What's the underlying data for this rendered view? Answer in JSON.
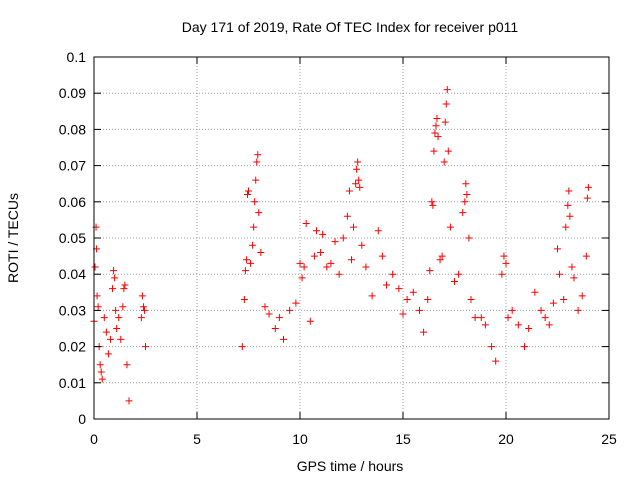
{
  "chart_data": {
    "type": "scatter",
    "title": "Day 171 of 2019, Rate Of TEC Index for receiver p011",
    "xlabel": "GPS time / hours",
    "ylabel": "ROTI / TECUs",
    "xlim": [
      0,
      25
    ],
    "ylim": [
      0,
      0.1
    ],
    "x_ticks": [
      "0",
      "5",
      "10",
      "15",
      "20",
      "25"
    ],
    "y_ticks": [
      "0",
      "0.01",
      "0.02",
      "0.03",
      "0.04",
      "0.05",
      "0.06",
      "0.07",
      "0.08",
      "0.09",
      "0.1"
    ],
    "grid": true,
    "marker": "+",
    "color": "#ff0000",
    "data_gaps_hours": [
      [
        2.7,
        7.1
      ]
    ],
    "series": [
      {
        "points": [
          [
            0.0,
            0.027
          ],
          [
            0.05,
            0.042
          ],
          [
            0.1,
            0.053
          ],
          [
            0.12,
            0.047
          ],
          [
            0.15,
            0.034
          ],
          [
            0.2,
            0.031
          ],
          [
            0.25,
            0.02
          ],
          [
            0.3,
            0.015
          ],
          [
            0.35,
            0.013
          ],
          [
            0.4,
            0.011
          ],
          [
            0.5,
            0.028
          ],
          [
            0.6,
            0.024
          ],
          [
            0.7,
            0.018
          ],
          [
            0.8,
            0.022
          ],
          [
            0.9,
            0.036
          ],
          [
            0.95,
            0.041
          ],
          [
            1.0,
            0.039
          ],
          [
            1.05,
            0.03
          ],
          [
            1.1,
            0.025
          ],
          [
            1.2,
            0.028
          ],
          [
            1.3,
            0.022
          ],
          [
            1.4,
            0.031
          ],
          [
            1.45,
            0.036
          ],
          [
            1.5,
            0.037
          ],
          [
            1.6,
            0.015
          ],
          [
            1.7,
            0.005
          ],
          [
            2.3,
            0.028
          ],
          [
            2.35,
            0.034
          ],
          [
            2.4,
            0.031
          ],
          [
            2.45,
            0.03
          ],
          [
            2.5,
            0.02
          ],
          [
            7.2,
            0.02
          ],
          [
            7.3,
            0.033
          ],
          [
            7.35,
            0.041
          ],
          [
            7.4,
            0.044
          ],
          [
            7.45,
            0.062
          ],
          [
            7.5,
            0.063
          ],
          [
            7.6,
            0.043
          ],
          [
            7.7,
            0.048
          ],
          [
            7.75,
            0.053
          ],
          [
            7.8,
            0.06
          ],
          [
            7.85,
            0.066
          ],
          [
            7.9,
            0.071
          ],
          [
            7.95,
            0.073
          ],
          [
            8.0,
            0.057
          ],
          [
            8.1,
            0.046
          ],
          [
            8.3,
            0.031
          ],
          [
            8.5,
            0.029
          ],
          [
            8.8,
            0.025
          ],
          [
            9.0,
            0.028
          ],
          [
            9.2,
            0.022
          ],
          [
            9.5,
            0.03
          ],
          [
            9.8,
            0.032
          ],
          [
            10.0,
            0.043
          ],
          [
            10.1,
            0.039
          ],
          [
            10.2,
            0.042
          ],
          [
            10.3,
            0.054
          ],
          [
            10.5,
            0.027
          ],
          [
            10.7,
            0.045
          ],
          [
            10.8,
            0.052
          ],
          [
            11.0,
            0.046
          ],
          [
            11.1,
            0.051
          ],
          [
            11.3,
            0.042
          ],
          [
            11.5,
            0.043
          ],
          [
            11.7,
            0.049
          ],
          [
            11.9,
            0.04
          ],
          [
            12.1,
            0.05
          ],
          [
            12.3,
            0.056
          ],
          [
            12.4,
            0.063
          ],
          [
            12.5,
            0.044
          ],
          [
            12.6,
            0.053
          ],
          [
            12.7,
            0.065
          ],
          [
            12.75,
            0.069
          ],
          [
            12.8,
            0.071
          ],
          [
            12.85,
            0.066
          ],
          [
            12.9,
            0.064
          ],
          [
            13.0,
            0.048
          ],
          [
            13.2,
            0.042
          ],
          [
            13.5,
            0.034
          ],
          [
            13.8,
            0.052
          ],
          [
            14.0,
            0.045
          ],
          [
            14.2,
            0.037
          ],
          [
            14.5,
            0.04
          ],
          [
            14.8,
            0.036
          ],
          [
            15.0,
            0.029
          ],
          [
            15.2,
            0.033
          ],
          [
            15.5,
            0.035
          ],
          [
            15.8,
            0.03
          ],
          [
            16.0,
            0.024
          ],
          [
            16.2,
            0.033
          ],
          [
            16.3,
            0.041
          ],
          [
            16.4,
            0.06
          ],
          [
            16.45,
            0.059
          ],
          [
            16.5,
            0.074
          ],
          [
            16.55,
            0.079
          ],
          [
            16.6,
            0.081
          ],
          [
            16.65,
            0.083
          ],
          [
            16.7,
            0.078
          ],
          [
            16.8,
            0.044
          ],
          [
            16.9,
            0.045
          ],
          [
            17.0,
            0.071
          ],
          [
            17.05,
            0.082
          ],
          [
            17.1,
            0.087
          ],
          [
            17.15,
            0.091
          ],
          [
            17.2,
            0.074
          ],
          [
            17.3,
            0.053
          ],
          [
            17.5,
            0.038
          ],
          [
            17.7,
            0.04
          ],
          [
            17.9,
            0.057
          ],
          [
            18.0,
            0.06
          ],
          [
            18.05,
            0.065
          ],
          [
            18.1,
            0.062
          ],
          [
            18.2,
            0.05
          ],
          [
            18.3,
            0.033
          ],
          [
            18.5,
            0.028
          ],
          [
            18.8,
            0.028
          ],
          [
            19.0,
            0.026
          ],
          [
            19.3,
            0.02
          ],
          [
            19.5,
            0.016
          ],
          [
            19.8,
            0.04
          ],
          [
            19.9,
            0.045
          ],
          [
            20.0,
            0.043
          ],
          [
            20.1,
            0.028
          ],
          [
            20.3,
            0.03
          ],
          [
            20.6,
            0.026
          ],
          [
            20.9,
            0.02
          ],
          [
            21.1,
            0.025
          ],
          [
            21.4,
            0.035
          ],
          [
            21.7,
            0.03
          ],
          [
            21.9,
            0.028
          ],
          [
            22.1,
            0.026
          ],
          [
            22.3,
            0.032
          ],
          [
            22.5,
            0.047
          ],
          [
            22.6,
            0.04
          ],
          [
            22.8,
            0.033
          ],
          [
            22.9,
            0.053
          ],
          [
            23.0,
            0.059
          ],
          [
            23.05,
            0.063
          ],
          [
            23.1,
            0.056
          ],
          [
            23.2,
            0.042
          ],
          [
            23.3,
            0.039
          ],
          [
            23.5,
            0.03
          ],
          [
            23.7,
            0.034
          ],
          [
            23.9,
            0.045
          ],
          [
            23.95,
            0.061
          ],
          [
            24.0,
            0.064
          ]
        ]
      }
    ]
  }
}
